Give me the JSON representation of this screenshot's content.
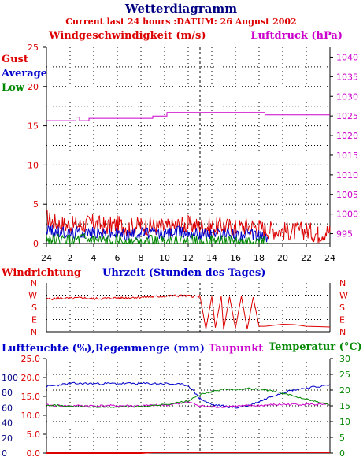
{
  "header": {
    "title": "Wetterdiagramm",
    "subtitle": "Current last 24 hours :DATUM: 26 August 2002"
  },
  "colors": {
    "red": "#dd0000",
    "blue": "#0000cc",
    "green": "#008800",
    "magenta": "#cc00cc",
    "navy": "#000080"
  },
  "chart_data": [
    {
      "type": "line",
      "title": "",
      "ylabel": "Windgeschwindigkeit (m/s)",
      "y2label": "Luftdruck (hPa)",
      "xlabel": "Uhrzeit (Stunden des Tages)",
      "x_ticks": [
        "24",
        "2",
        "4",
        "6",
        "8",
        "10",
        "12",
        "14",
        "16",
        "18",
        "20",
        "22",
        "24"
      ],
      "ylim": [
        0,
        25
      ],
      "y_ticks": [
        "0",
        "5",
        "10",
        "15",
        "20",
        "25"
      ],
      "y2lim": [
        992.5,
        1042.5
      ],
      "y2_ticks": [
        "995",
        "1000",
        "1005",
        "1010",
        "1015",
        "1020",
        "1025",
        "1030",
        "1035",
        "1040"
      ],
      "legend": [
        "Gust",
        "Average",
        "Low"
      ],
      "series": [
        {
          "name": "Gust",
          "axis": "left",
          "x": [
            0,
            0.5,
            1,
            2,
            3,
            4,
            5,
            6,
            7,
            8,
            9,
            10,
            11,
            12,
            13,
            14,
            15,
            16,
            17,
            18,
            18.7,
            21,
            22,
            23,
            23.7,
            24
          ],
          "values": [
            3.2,
            2.8,
            2.5,
            2.3,
            2.4,
            2.6,
            2.2,
            2.4,
            2.1,
            2.3,
            2.2,
            2.0,
            2.3,
            2.4,
            2.2,
            2.1,
            2.3,
            2.0,
            2.2,
            2.1,
            1.8,
            1.5,
            1.7,
            1.2,
            1.6,
            1.4
          ]
        },
        {
          "name": "Average",
          "axis": "left",
          "x": [
            0,
            0.5,
            1,
            2,
            3,
            4,
            5,
            6,
            7,
            8,
            9,
            10,
            11,
            12,
            13,
            14,
            15,
            16,
            17,
            18,
            18.7
          ],
          "values": [
            1.8,
            1.6,
            1.4,
            1.3,
            1.5,
            1.4,
            1.2,
            1.3,
            1.1,
            1.4,
            1.3,
            1.2,
            1.5,
            1.4,
            1.3,
            1.2,
            1.4,
            1.1,
            1.2,
            1.0,
            0.8
          ]
        },
        {
          "name": "Low",
          "axis": "left",
          "x": [
            0,
            0.5,
            1,
            2,
            3,
            4,
            5,
            6,
            7,
            8,
            9,
            10,
            11,
            12,
            13,
            14,
            15,
            16,
            17,
            18,
            18.7
          ],
          "values": [
            0.6,
            0.5,
            0.4,
            0.3,
            0.5,
            0.3,
            0.2,
            0.4,
            0.2,
            0.3,
            0.3,
            0.2,
            0.4,
            0.3,
            0.3,
            0.2,
            0.3,
            0.2,
            0.2,
            0.2,
            0.1
          ]
        },
        {
          "name": "Luftdruck",
          "axis": "right",
          "x": [
            0,
            2.2,
            2.5,
            2.8,
            3,
            3.6,
            8,
            9,
            10.2,
            11,
            14,
            16,
            18.5,
            24
          ],
          "values": [
            1023.8,
            1023.8,
            1024.7,
            1023.8,
            1023.8,
            1024.4,
            1024.4,
            1025.0,
            1025.9,
            1025.9,
            1025.9,
            1025.9,
            1025.3,
            1025.3
          ]
        }
      ]
    },
    {
      "type": "line",
      "title": "Windrichtung",
      "y_ticks": [
        "N",
        "W",
        "S",
        "E",
        "N"
      ],
      "ylim": [
        0,
        360
      ],
      "series": [
        {
          "name": "Windrichtung",
          "x": [
            0,
            1,
            2,
            3,
            4,
            5,
            6,
            7,
            8,
            9,
            10,
            11,
            12,
            13,
            13.5,
            14,
            14.3,
            14.8,
            15,
            15.5,
            16,
            16.5,
            17,
            17.5,
            18,
            18.5,
            19,
            20,
            21,
            22,
            23,
            24
          ],
          "values": [
            240,
            248,
            245,
            250,
            243,
            246,
            250,
            252,
            255,
            258,
            262,
            266,
            264,
            260,
            20,
            260,
            30,
            262,
            15,
            258,
            25,
            262,
            20,
            255,
            40,
            40,
            45,
            55,
            52,
            40,
            38,
            35
          ]
        }
      ]
    },
    {
      "type": "line",
      "title": "",
      "ylabel": "Luftfeuchte (%),Regenmenge (mm)",
      "y2label": "Taupunkt",
      "y3label": "Temperatur (°C)",
      "y_ticks_humidity": [
        "0",
        "20",
        "40",
        "60",
        "80",
        "100"
      ],
      "y_ticks_rain": [
        "0.0",
        "5.0",
        "10.0",
        "15.0",
        "20.0",
        "25.0"
      ],
      "ylim_rain": [
        0,
        25
      ],
      "y2_ticks": [
        "0",
        "5",
        "10",
        "15",
        "20",
        "25",
        "30"
      ],
      "y2lim": [
        0,
        30
      ],
      "series": [
        {
          "name": "Luftfeuchte",
          "x": [
            0,
            1,
            2,
            4,
            6,
            8,
            10,
            12,
            13,
            14,
            15,
            16,
            17,
            18,
            19,
            20,
            21,
            22,
            23,
            24
          ],
          "values": [
            88,
            90,
            92,
            92,
            92,
            92,
            92,
            90,
            72,
            64,
            62,
            60,
            62,
            68,
            75,
            80,
            84,
            86,
            88,
            90
          ]
        },
        {
          "name": "Regenmenge",
          "x": [
            0,
            8,
            9,
            24
          ],
          "values": [
            0,
            0,
            0.2,
            0.2
          ]
        },
        {
          "name": "Taupunkt",
          "x": [
            0,
            2,
            4,
            6,
            8,
            10,
            12,
            13,
            14,
            15,
            16,
            17,
            18,
            19,
            20,
            21,
            22,
            23,
            24
          ],
          "values": [
            15.2,
            15,
            15,
            15,
            15,
            15.2,
            16.2,
            15,
            14.6,
            14.8,
            14.9,
            15,
            15.1,
            15.3,
            15.4,
            15.5,
            15.5,
            15.4,
            15.3
          ]
        },
        {
          "name": "Temperatur",
          "x": [
            0,
            2,
            4,
            6,
            8,
            10,
            12,
            13,
            14,
            15,
            16,
            17,
            18,
            19,
            20,
            21,
            22,
            23,
            24
          ],
          "values": [
            15.4,
            14.8,
            14.6,
            14.6,
            14.8,
            15.4,
            16.5,
            18.5,
            19.5,
            20.2,
            20.2,
            20.5,
            20.3,
            19.8,
            19,
            18,
            17.2,
            16.2,
            15.3
          ]
        }
      ]
    }
  ]
}
